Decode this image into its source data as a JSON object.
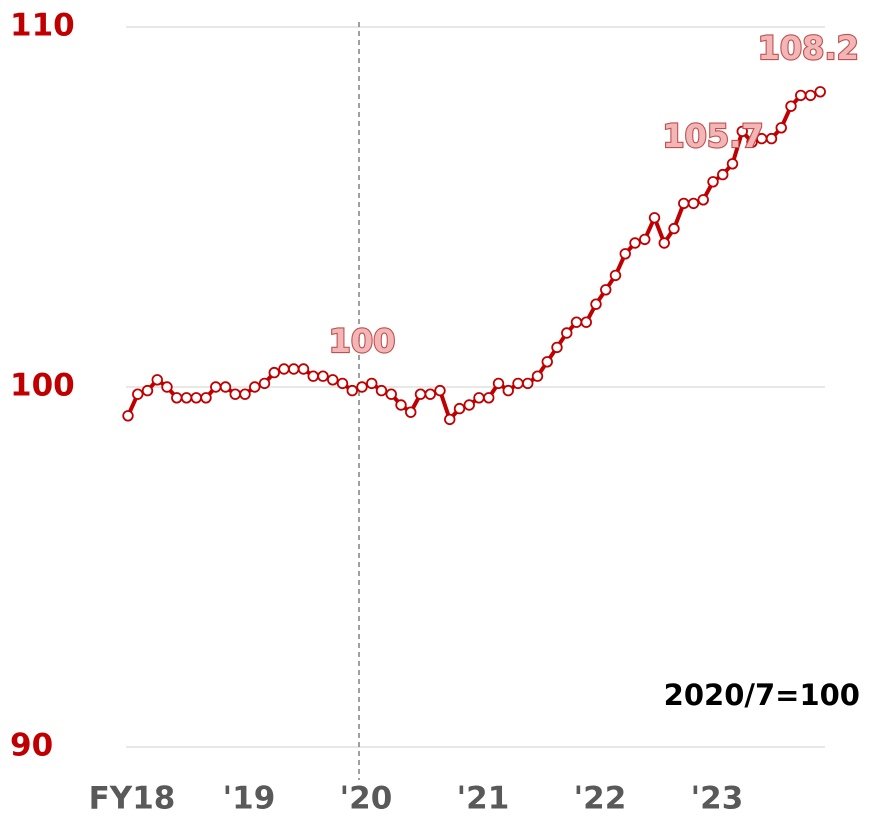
{
  "chart_data": {
    "type": "line",
    "categories": [
      "FY18",
      null,
      null,
      null,
      null,
      null,
      null,
      null,
      null,
      null,
      null,
      null,
      "'19",
      null,
      null,
      null,
      null,
      null,
      null,
      null,
      null,
      null,
      null,
      null,
      "'20",
      null,
      null,
      null,
      null,
      null,
      null,
      null,
      null,
      null,
      null,
      null,
      "'21",
      null,
      null,
      null,
      null,
      null,
      null,
      null,
      null,
      null,
      null,
      null,
      "'22",
      null,
      null,
      null,
      null,
      null,
      null,
      null,
      null,
      null,
      null,
      null,
      "'23",
      null,
      null,
      null,
      null,
      null,
      null,
      null,
      null,
      null,
      null,
      null
    ],
    "series": [
      {
        "color": "#c00000",
        "values": [
          99.2,
          99.8,
          99.9,
          100.2,
          100.0,
          99.7,
          99.7,
          99.7,
          99.7,
          100.0,
          100.0,
          99.8,
          99.8,
          100.0,
          100.1,
          100.4,
          100.5,
          100.5,
          100.5,
          100.3,
          100.3,
          100.2,
          100.1,
          99.9,
          100,
          100.1,
          99.9,
          99.8,
          99.5,
          99.3,
          99.8,
          99.8,
          99.9,
          99.1,
          99.4,
          99.5,
          99.7,
          99.7,
          100.1,
          99.9,
          100.1,
          100.1,
          100.3,
          100.7,
          101.1,
          101.5,
          101.8,
          101.8,
          102.3,
          102.7,
          103.1,
          103.7,
          104.0,
          104.1,
          104.7,
          104.0,
          104.4,
          105.1,
          105.1,
          105.2,
          105.7,
          105.9,
          106.2,
          107.1,
          106.8,
          106.9,
          106.9,
          107.2,
          107.8,
          108.1,
          108.1,
          108.2
        ],
        "value_labels": [
          null,
          null,
          null,
          null,
          null,
          null,
          null,
          null,
          null,
          null,
          null,
          null,
          null,
          null,
          null,
          null,
          null,
          null,
          null,
          null,
          null,
          null,
          null,
          null,
          "100",
          null,
          null,
          null,
          null,
          null,
          null,
          null,
          null,
          null,
          null,
          null,
          null,
          null,
          null,
          null,
          null,
          null,
          null,
          null,
          null,
          null,
          null,
          null,
          null,
          null,
          null,
          null,
          null,
          null,
          null,
          null,
          null,
          null,
          null,
          null,
          "105.7",
          null,
          null,
          null,
          null,
          null,
          null,
          null,
          null,
          null,
          null,
          "108.2"
        ]
      }
    ],
    "ylim": [
      90,
      110
    ],
    "yticks": [
      90,
      100,
      110
    ],
    "grid": true,
    "annotation": "2020/7=100"
  }
}
